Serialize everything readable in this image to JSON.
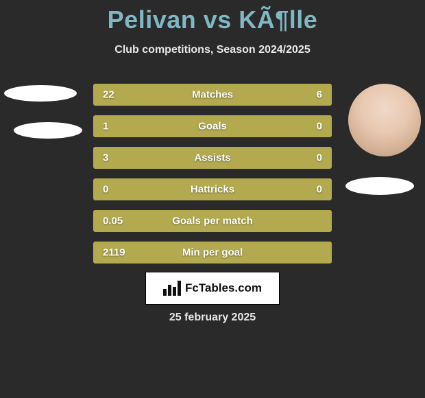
{
  "title": "Pelivan vs KÃ¶lle",
  "subtitle": "Club competitions, Season 2024/2025",
  "date": "25 february 2025",
  "brand": "FcTables.com",
  "colors": {
    "title": "#7fb8c4",
    "bar_fill": "#b3aa50",
    "bar_bg": "#8c8434",
    "bar_border": "#b3aa50",
    "page_bg": "#2a2a2a",
    "text": "#e8e8e8"
  },
  "bars": [
    {
      "label": "Matches",
      "left": "22",
      "right": "6",
      "left_pct": 75,
      "right_pct": 25
    },
    {
      "label": "Goals",
      "left": "1",
      "right": "0",
      "left_pct": 75,
      "right_pct": 25
    },
    {
      "label": "Assists",
      "left": "3",
      "right": "0",
      "left_pct": 75,
      "right_pct": 25
    },
    {
      "label": "Hattricks",
      "left": "0",
      "right": "0",
      "left_pct": 75,
      "right_pct": 25
    },
    {
      "label": "Goals per match",
      "left": "0.05",
      "right": "",
      "left_pct": 100,
      "right_pct": 0
    },
    {
      "label": "Min per goal",
      "left": "2119",
      "right": "",
      "left_pct": 100,
      "right_pct": 0
    }
  ]
}
